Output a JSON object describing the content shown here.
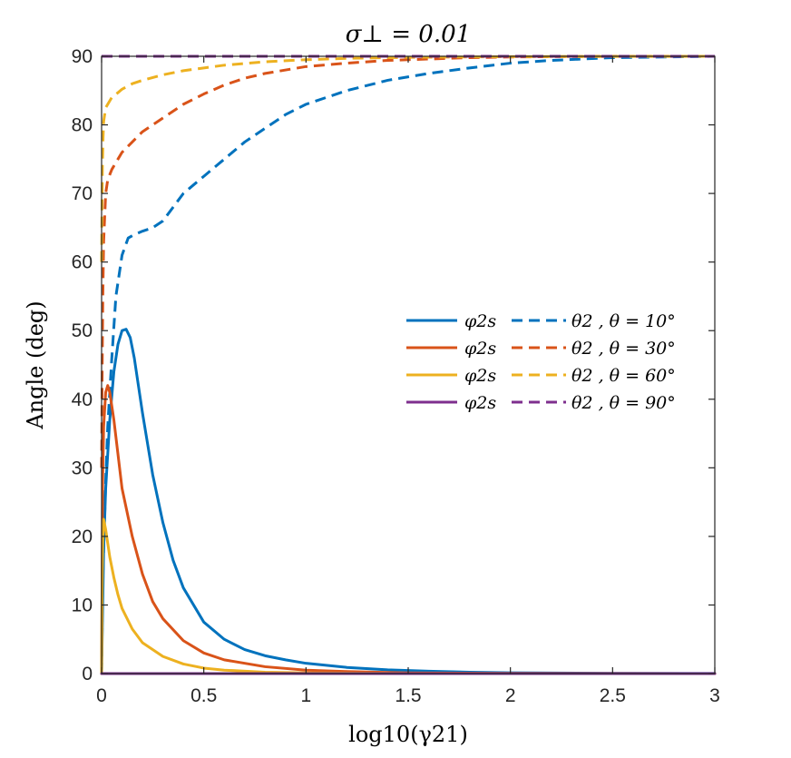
{
  "chart_data": {
    "type": "line",
    "title": "σ⊥ = 0.01",
    "xlabel": "log10(γ21)",
    "ylabel": "Angle (deg)",
    "xlim": [
      0,
      3
    ],
    "ylim": [
      0,
      90
    ],
    "xticks": [
      0,
      0.5,
      1,
      1.5,
      2,
      2.5,
      3
    ],
    "xtick_labels": [
      "0",
      "0.5",
      "1",
      "1.5",
      "2",
      "2.5",
      "3"
    ],
    "yticks": [
      0,
      10,
      20,
      30,
      40,
      50,
      60,
      70,
      80,
      90
    ],
    "ytick_labels": [
      "0",
      "10",
      "20",
      "30",
      "40",
      "50",
      "60",
      "70",
      "80",
      "90"
    ],
    "grid": false,
    "legend_position": "center-right",
    "legend": [
      {
        "solid_label": "φ2s",
        "dashed_label": "θ2 , θ = 10°",
        "color": "#0072BD"
      },
      {
        "solid_label": "φ2s",
        "dashed_label": "θ2 , θ = 30°",
        "color": "#D95319"
      },
      {
        "solid_label": "φ2s",
        "dashed_label": "θ2 , θ = 60°",
        "color": "#EDB120"
      },
      {
        "solid_label": "φ2s",
        "dashed_label": "θ2 , θ = 90°",
        "color": "#7E2F8E"
      }
    ],
    "series": [
      {
        "name": "φ2s, θ = 10°",
        "style": "solid",
        "color": "#0072BD",
        "x": [
          0,
          0.01,
          0.02,
          0.04,
          0.06,
          0.08,
          0.1,
          0.12,
          0.14,
          0.16,
          0.18,
          0.2,
          0.25,
          0.3,
          0.35,
          0.4,
          0.5,
          0.6,
          0.7,
          0.8,
          0.9,
          1.0,
          1.2,
          1.4,
          1.6,
          1.8,
          2.0,
          2.5,
          3.0
        ],
        "y": [
          0,
          18,
          27,
          37,
          44,
          48,
          50,
          50.2,
          49,
          46,
          42,
          38,
          29,
          22,
          16.5,
          12.5,
          7.5,
          5,
          3.5,
          2.6,
          2,
          1.5,
          0.9,
          0.55,
          0.35,
          0.2,
          0.12,
          0.04,
          0.01
        ]
      },
      {
        "name": "θ2, θ = 10°",
        "style": "dashed",
        "color": "#0072BD",
        "x": [
          0,
          0.005,
          0.01,
          0.02,
          0.03,
          0.05,
          0.07,
          0.1,
          0.13,
          0.16,
          0.2,
          0.25,
          0.3,
          0.35,
          0.4,
          0.5,
          0.6,
          0.7,
          0.8,
          0.9,
          1.0,
          1.2,
          1.4,
          1.6,
          1.8,
          2.0,
          2.2,
          2.5,
          3.0
        ],
        "y": [
          0,
          12,
          18,
          28,
          36,
          46,
          55,
          61,
          63.5,
          64,
          64.5,
          65,
          66,
          68,
          70,
          72.5,
          75,
          77.5,
          79.5,
          81.5,
          83,
          85,
          86.5,
          87.5,
          88.3,
          89,
          89.4,
          89.8,
          90
        ]
      },
      {
        "name": "φ2s, θ = 30°",
        "style": "solid",
        "color": "#D95319",
        "x": [
          0,
          0.005,
          0.01,
          0.02,
          0.03,
          0.04,
          0.06,
          0.08,
          0.1,
          0.15,
          0.2,
          0.25,
          0.3,
          0.4,
          0.5,
          0.6,
          0.8,
          1.0,
          1.2,
          1.5,
          2.0,
          3.0
        ],
        "y": [
          0,
          28,
          36,
          41,
          42,
          41,
          37,
          32,
          27,
          20,
          14.5,
          10.5,
          8,
          4.8,
          3,
          2,
          1,
          0.5,
          0.3,
          0.1,
          0.03,
          0
        ]
      },
      {
        "name": "θ2, θ = 30°",
        "style": "dashed",
        "color": "#D95319",
        "x": [
          0,
          0.003,
          0.006,
          0.01,
          0.02,
          0.03,
          0.05,
          0.08,
          0.1,
          0.15,
          0.2,
          0.3,
          0.4,
          0.5,
          0.6,
          0.7,
          0.8,
          1.0,
          1.2,
          1.4,
          1.6,
          1.8,
          2.0,
          2.5,
          3.0
        ],
        "y": [
          30,
          45,
          55,
          63,
          70,
          72,
          73.5,
          75,
          76,
          77.5,
          79,
          81,
          83,
          84.5,
          85.8,
          86.8,
          87.5,
          88.5,
          89,
          89.4,
          89.6,
          89.8,
          89.9,
          90,
          90
        ]
      },
      {
        "name": "φ2s, θ = 60°",
        "style": "solid",
        "color": "#EDB120",
        "x": [
          0,
          0.003,
          0.006,
          0.01,
          0.02,
          0.04,
          0.06,
          0.08,
          0.1,
          0.15,
          0.2,
          0.3,
          0.4,
          0.5,
          0.6,
          0.8,
          1.0,
          1.5,
          3.0
        ],
        "y": [
          0,
          15,
          20,
          22.5,
          21,
          17,
          14,
          11.5,
          9.5,
          6.5,
          4.5,
          2.5,
          1.4,
          0.8,
          0.5,
          0.2,
          0.1,
          0.02,
          0
        ]
      },
      {
        "name": "θ2, θ = 60°",
        "style": "dashed",
        "color": "#EDB120",
        "x": [
          0,
          0.002,
          0.004,
          0.007,
          0.01,
          0.02,
          0.03,
          0.05,
          0.08,
          0.1,
          0.15,
          0.2,
          0.3,
          0.4,
          0.5,
          0.6,
          0.8,
          1.0,
          1.2,
          1.5,
          2.0,
          3.0
        ],
        "y": [
          60,
          68,
          74,
          78,
          80.5,
          82.5,
          83,
          84,
          84.7,
          85.2,
          86,
          86.5,
          87.3,
          87.9,
          88.3,
          88.7,
          89.2,
          89.5,
          89.7,
          89.85,
          89.95,
          90
        ]
      },
      {
        "name": "φ2s, θ = 90°",
        "style": "solid",
        "color": "#7E2F8E",
        "x": [
          0,
          3
        ],
        "y": [
          0,
          0
        ]
      },
      {
        "name": "θ2, θ = 90°",
        "style": "dashed",
        "color": "#7E2F8E",
        "x": [
          0,
          3
        ],
        "y": [
          90,
          90
        ]
      }
    ]
  }
}
